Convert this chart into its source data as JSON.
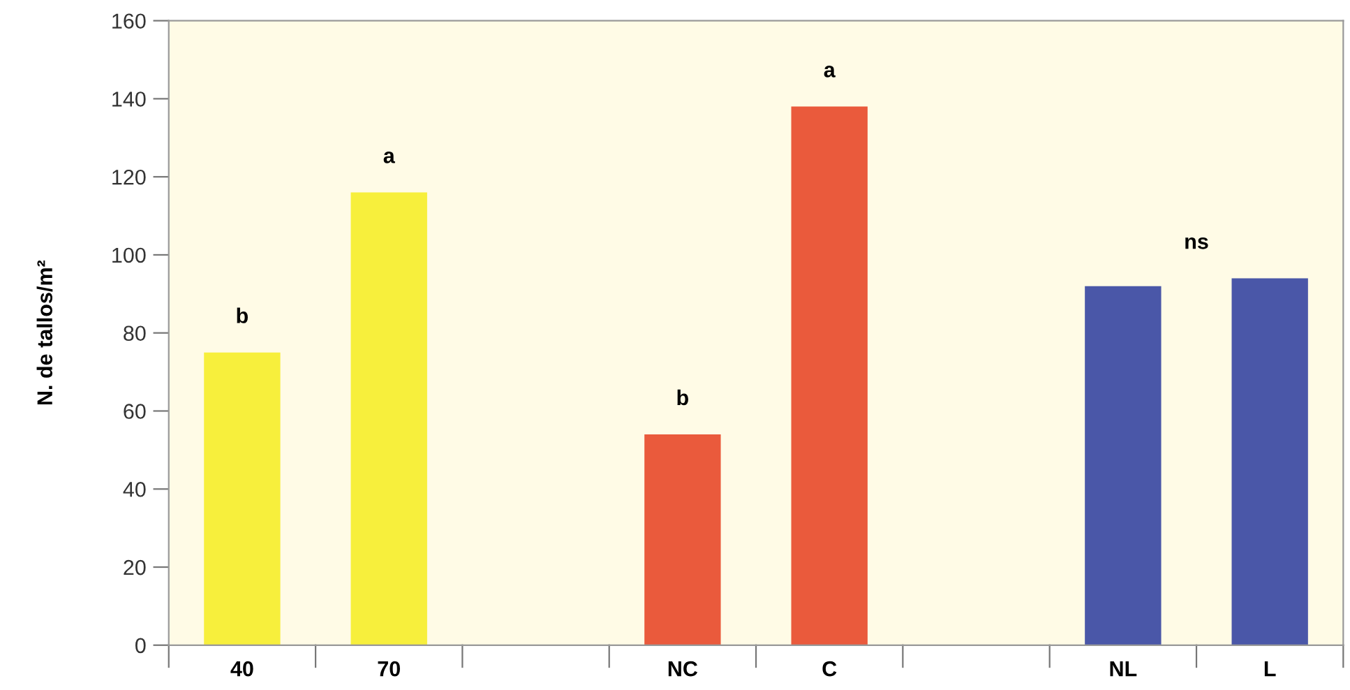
{
  "chart_data": {
    "type": "bar",
    "ylabel": "N. de tallos/m²",
    "categories": [
      "40",
      "70",
      null,
      "NC",
      "C",
      null,
      "NL",
      "L"
    ],
    "values": [
      75,
      116,
      null,
      54,
      138,
      null,
      92,
      94
    ],
    "colors": [
      "#f7ef3c",
      "#f7ef3c",
      "#ffffff",
      "#ea5a3c",
      "#ea5a3c",
      "#ffffff",
      "#4a57a8",
      "#4a57a8"
    ],
    "ylim": [
      0,
      160
    ],
    "yticks": [
      0,
      20,
      40,
      60,
      80,
      100,
      120,
      140,
      160
    ],
    "grid": false,
    "legend": false,
    "annotations": [
      "b",
      "a",
      "b",
      "a",
      "ns"
    ]
  }
}
